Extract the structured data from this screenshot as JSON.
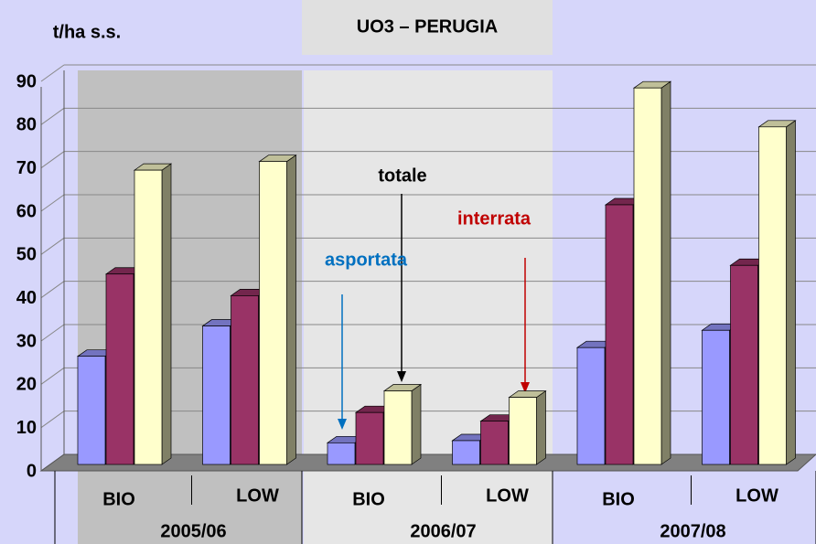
{
  "chart_data": {
    "type": "bar3d",
    "title": "UO3 – PERUGIA",
    "y_label": "t/ha s.s.",
    "categories": [
      "BIO",
      "LOW",
      "BIO",
      "LOW",
      "BIO",
      "LOW"
    ],
    "groups": [
      "2005/06",
      "2006/07",
      "2007/08"
    ],
    "series": [
      {
        "name": "asportata",
        "color": "#9999ff",
        "label_color": "#0070c0",
        "values": [
          25,
          32,
          5,
          5.5,
          27,
          31
        ]
      },
      {
        "name": "interrata",
        "color": "#993366",
        "label_color": "#c00000",
        "values": [
          44,
          39,
          12,
          10,
          60,
          46
        ]
      },
      {
        "name": "totale",
        "color": "#ffffcc",
        "label_color": "#000000",
        "values": [
          68,
          70,
          17,
          15.5,
          87,
          78
        ]
      }
    ],
    "ylim": [
      0,
      90
    ],
    "yticks": [
      0,
      10,
      20,
      30,
      40,
      50,
      60,
      70,
      80,
      90
    ],
    "grid": true
  }
}
